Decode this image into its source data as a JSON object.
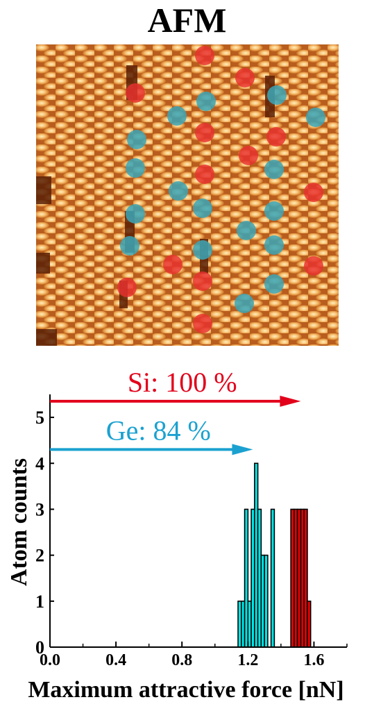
{
  "title": "AFM",
  "image": {
    "description_icon": "afm-topography-image",
    "colors": {
      "dark": "#6b2a0a",
      "mid": "#c8651f",
      "bright": "#ffe6b0",
      "si_marker": "#e8312f",
      "ge_marker": "#3aa6b7"
    }
  },
  "chart_data": {
    "type": "bar",
    "xlabel": "Maximum attractive force [nN]",
    "ylabel": "Atom counts",
    "xlim": [
      0.0,
      1.8
    ],
    "ylim": [
      0,
      5.5
    ],
    "xticks": [
      0.0,
      0.4,
      0.8,
      1.2,
      1.6
    ],
    "xtick_labels": [
      "0.0",
      "0.4",
      "0.8",
      "1.2",
      "1.6"
    ],
    "yticks": [
      0,
      1,
      2,
      3,
      4,
      5
    ],
    "ytick_labels": [
      "0",
      "1",
      "2",
      "3",
      "4",
      "5"
    ],
    "bin_width": 0.02,
    "series": [
      {
        "color": "#00e5e5",
        "bins": [
          {
            "x": 1.15,
            "count": 1
          },
          {
            "x": 1.17,
            "count": 1
          },
          {
            "x": 1.19,
            "count": 3
          },
          {
            "x": 1.21,
            "count": 1
          },
          {
            "x": 1.23,
            "count": 3
          },
          {
            "x": 1.25,
            "count": 4
          },
          {
            "x": 1.27,
            "count": 3
          },
          {
            "x": 1.29,
            "count": 2
          },
          {
            "x": 1.31,
            "count": 2
          },
          {
            "x": 1.33,
            "count": 0
          },
          {
            "x": 1.35,
            "count": 3
          }
        ]
      },
      {
        "color": "#e20000",
        "bins": [
          {
            "x": 1.47,
            "count": 3
          },
          {
            "x": 1.49,
            "count": 3
          },
          {
            "x": 1.51,
            "count": 3
          },
          {
            "x": 1.53,
            "count": 3
          },
          {
            "x": 1.55,
            "count": 3
          },
          {
            "x": 1.57,
            "count": 1
          }
        ]
      }
    ],
    "annotations": [
      {
        "text": "Si: 100 %",
        "color": "#e2001a",
        "arrow_y": 5.35,
        "arrow_to_x": 1.52
      },
      {
        "text": "Ge: 84 %",
        "color": "#1ba1d0",
        "arrow_y": 4.3,
        "arrow_to_x": 1.23
      }
    ]
  }
}
